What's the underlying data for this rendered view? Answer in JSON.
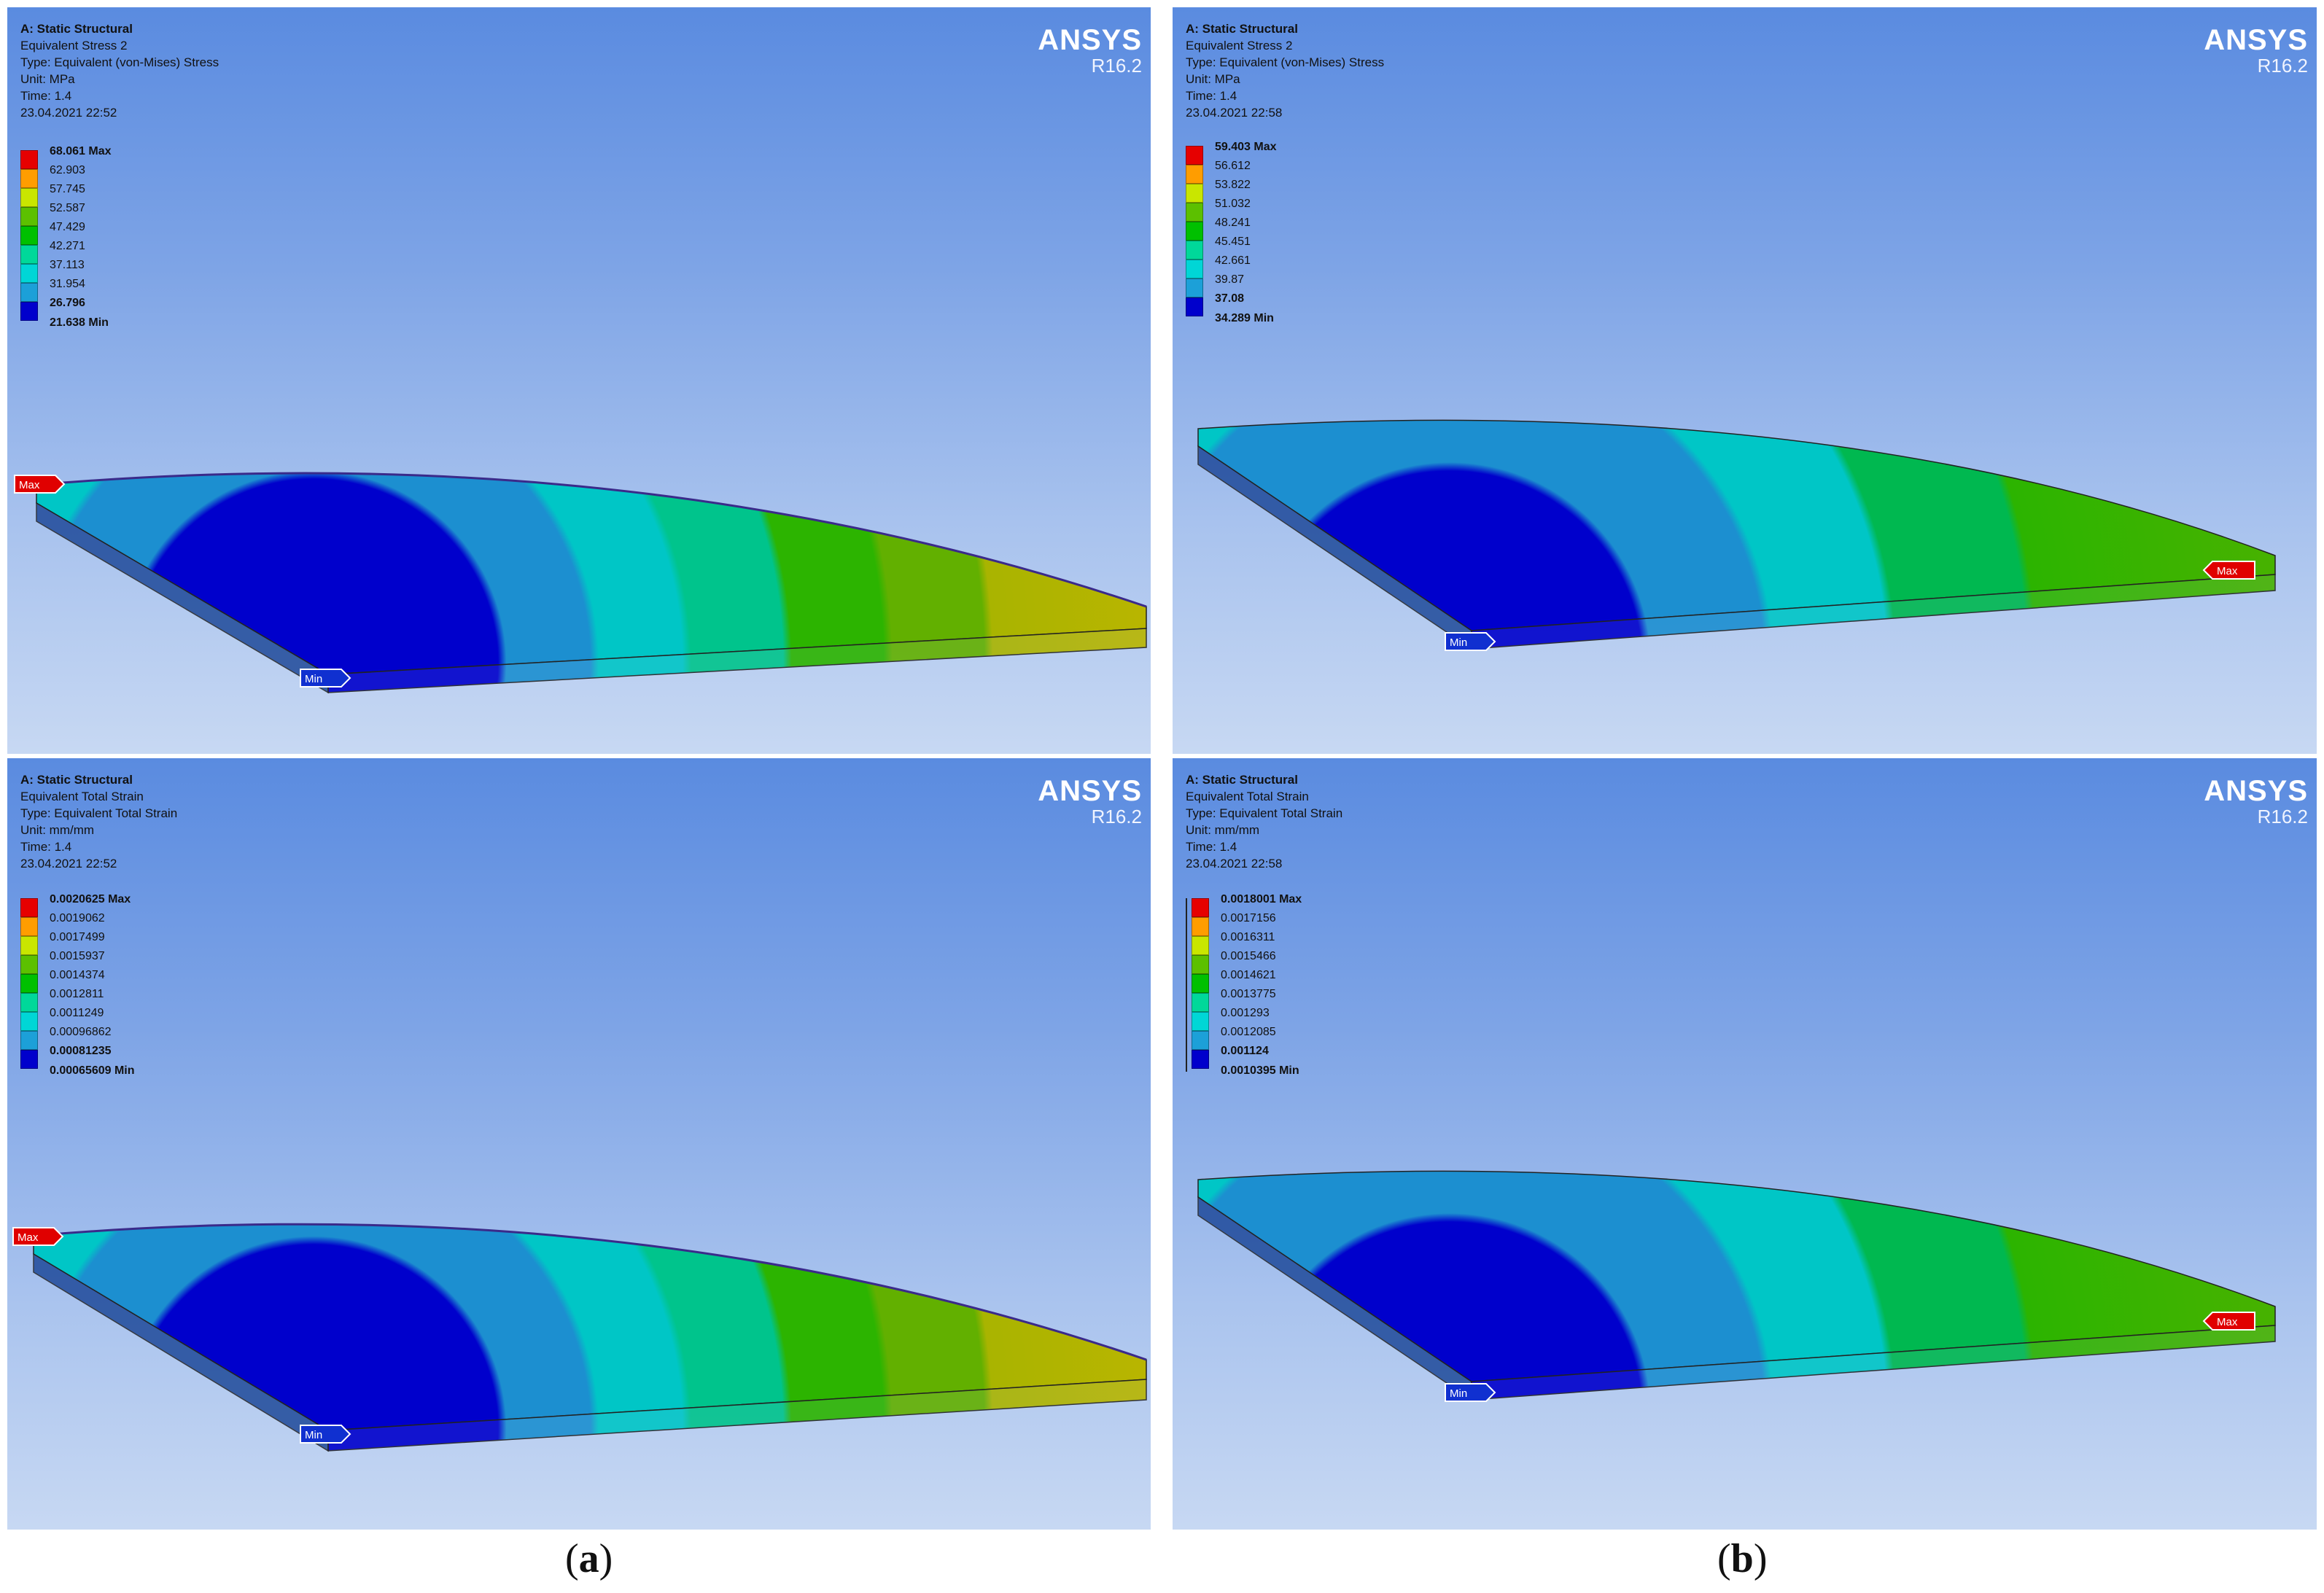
{
  "colors": {
    "legend": [
      "#e60000",
      "#ff9d00",
      "#c9e600",
      "#5cc000",
      "#00c000",
      "#00d89a",
      "#00d6d6",
      "#1ca0d8",
      "#0000cc"
    ]
  },
  "panels": [
    {
      "id": "a-stress",
      "header": {
        "title": "A: Static Structural",
        "name": "Equivalent Stress 2",
        "type": "Type: Equivalent (von-Mises) Stress",
        "unit": "Unit: MPa",
        "time": "Time: 1.4",
        "date": "23.04.2021 22:52"
      },
      "logo": {
        "brand": "ANSYS",
        "version": "R16.2"
      },
      "legend": [
        "68.061 Max",
        "62.903",
        "57.745",
        "52.587",
        "47.429",
        "42.271",
        "37.113",
        "31.954",
        "26.796",
        "21.638 Min"
      ],
      "markers": {
        "max": "Max",
        "min": "Min"
      }
    },
    {
      "id": "b-stress",
      "header": {
        "title": "A: Static Structural",
        "name": "Equivalent Stress 2",
        "type": "Type: Equivalent (von-Mises) Stress",
        "unit": "Unit: MPa",
        "time": "Time: 1.4",
        "date": "23.04.2021 22:58"
      },
      "logo": {
        "brand": "ANSYS",
        "version": "R16.2"
      },
      "legend": [
        "59.403 Max",
        "56.612",
        "53.822",
        "51.032",
        "48.241",
        "45.451",
        "42.661",
        "39.87",
        "37.08",
        "34.289 Min"
      ],
      "markers": {
        "max": "Max",
        "min": "Min"
      }
    },
    {
      "id": "a-strain",
      "header": {
        "title": "A: Static Structural",
        "name": "Equivalent Total Strain",
        "type": "Type: Equivalent Total Strain",
        "unit": "Unit: mm/mm",
        "time": "Time: 1.4",
        "date": "23.04.2021 22:52"
      },
      "logo": {
        "brand": "ANSYS",
        "version": "R16.2"
      },
      "legend": [
        "0.0020625 Max",
        "0.0019062",
        "0.0017499",
        "0.0015937",
        "0.0014374",
        "0.0012811",
        "0.0011249",
        "0.00096862",
        "0.00081235",
        "0.00065609 Min"
      ],
      "markers": {
        "max": "Max",
        "min": "Min"
      }
    },
    {
      "id": "b-strain",
      "header": {
        "title": "A: Static Structural",
        "name": "Equivalent Total Strain",
        "type": "Type: Equivalent Total Strain",
        "unit": "Unit: mm/mm",
        "time": "Time: 1.4",
        "date": "23.04.2021 22:58"
      },
      "logo": {
        "brand": "ANSYS",
        "version": "R16.2"
      },
      "legend": [
        "0.0018001 Max",
        "0.0017156",
        "0.0016311",
        "0.0015466",
        "0.0014621",
        "0.0013775",
        "0.001293",
        "0.0012085",
        "0.001124",
        "0.0010395 Min"
      ],
      "markers": {
        "max": "Max",
        "min": "Min"
      }
    }
  ],
  "captions": {
    "a": "a",
    "b": "b"
  }
}
